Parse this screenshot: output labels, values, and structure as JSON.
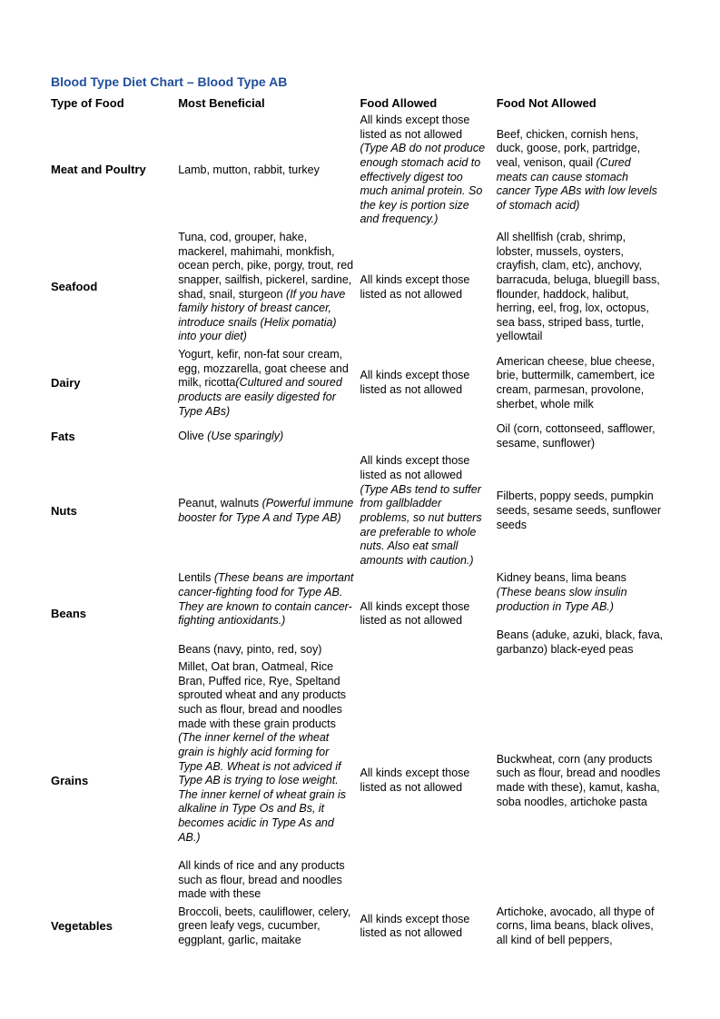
{
  "title": "Blood Type Diet Chart – Blood Type AB",
  "headers": {
    "col1": "Type of Food",
    "col2": "Most Beneficial",
    "col3": "Food Allowed",
    "col4": "Food Not Allowed"
  },
  "rows": [
    {
      "category": "Meat and Poultry",
      "beneficial": "Lamb, mutton, rabbit, turkey",
      "allowed_plain": "All kinds except those listed as not allowed ",
      "allowed_ital": "(Type AB do not produce enough stomach acid to effectively digest too much animal protein. So the key is portion size and frequency.)",
      "notallowed_plain": "Beef, chicken, cornish hens, duck, goose, pork, partridge, veal, venison, quail ",
      "notallowed_ital": "(Cured meats can cause stomach cancer Type ABs with low levels of stomach acid)"
    },
    {
      "category": "Seafood",
      "beneficial_plain": "Tuna, cod, grouper, hake, mackerel, mahimahi, monkfish, ocean perch, pike, porgy, trout, red snapper, sailfish, pickerel, sardine, shad, snail, sturgeon ",
      "beneficial_ital": "(If you have family history of breast cancer, introduce snails (Helix pomatia) into your diet)",
      "allowed_plain": "All kinds except those listed as not allowed",
      "notallowed_plain": "All shellfish (crab, shrimp, lobster, mussels, oysters, crayfish, clam, etc), anchovy, barracuda, beluga, bluegill bass, flounder, haddock, halibut, herring, eel, frog, lox, octopus, sea bass, striped bass, turtle, yellowtail"
    },
    {
      "category": "Dairy",
      "beneficial_plain": "Yogurt, kefir, non-fat sour cream, egg, mozzarella, goat cheese and milk, ricotta",
      "beneficial_ital": "(Cultured and soured products are easily digested for Type ABs)",
      "allowed_plain": "All kinds except those listed as not allowed",
      "notallowed_plain": "American cheese, blue cheese, brie, buttermilk, camembert, ice cream, parmesan, provolone, sherbet, whole milk"
    },
    {
      "category": "Fats",
      "beneficial_plain": "Olive ",
      "beneficial_ital": "(Use sparingly)",
      "allowed_plain": "",
      "notallowed_plain": "Oil (corn, cottonseed, safflower, sesame, sunflower)"
    },
    {
      "category": "Nuts",
      "beneficial_plain": "Peanut, walnuts ",
      "beneficial_ital": "(Powerful immune booster for Type A and Type AB)",
      "allowed_plain": "All kinds except those listed as not allowed ",
      "allowed_ital": "(Type ABs tend to suffer from gallbladder problems, so nut butters are preferable to whole nuts. Also eat small amounts with caution.)",
      "notallowed_plain": "Filberts, poppy seeds, pumpkin seeds, sesame seeds, sunflower seeds"
    },
    {
      "category": "Beans",
      "beneficial_plain": "Lentils ",
      "beneficial_ital": "(These beans are important cancer-fighting food for Type AB. They are known to contain cancer-fighting antioxidants.)",
      "beneficial_after": "\nBeans (navy, pinto, red, soy)",
      "allowed_plain": "All kinds except those listed as not allowed",
      "notallowed_plain": "Kidney beans, lima beans ",
      "notallowed_ital": "(These beans slow insulin production in Type AB.)",
      "notallowed_after": "\nBeans (aduke, azuki, black, fava, garbanzo) black-eyed peas"
    },
    {
      "category": "Grains",
      "beneficial_plain": "Millet, Oat bran, Oatmeal, Rice Bran, Puffed rice, Rye, Speltand sprouted wheat and any products such as flour, bread and noodles made with these grain products ",
      "beneficial_ital": "(The inner kernel of the wheat grain is highly acid forming for Type AB. Wheat is not adviced if Type AB is trying to lose weight. The inner kernel of wheat grain is alkaline in Type Os and Bs, it becomes acidic in Type As and AB.)",
      "beneficial_after": "\nAll kinds of rice and any products such as flour, bread and noodles made with these",
      "allowed_plain": "All kinds except those listed as not allowed",
      "notallowed_plain": "Buckwheat, corn (any products such as flour, bread and noodles made with these), kamut, kasha, soba noodles, artichoke pasta"
    },
    {
      "category": "Vegetables",
      "beneficial_plain": "Broccoli, beets, cauliflower, celery, green leafy vegs, cucumber, eggplant, garlic, maitake",
      "allowed_plain": "All kinds except those listed as not allowed",
      "notallowed_plain": "Artichoke, avocado, all thype of corns, lima beans, black olives, all kind of bell peppers,"
    }
  ]
}
